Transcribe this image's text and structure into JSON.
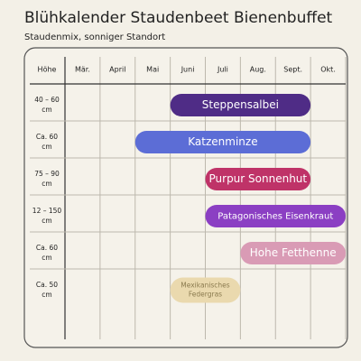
{
  "chart_data": {
    "type": "gantt",
    "title": "Blühkalender Staudenbeet Bienenbuffet",
    "subtitle": "Staudenmix, sonniger Standort",
    "row_header": "Höhe",
    "categories": [
      "Mär.",
      "April",
      "Mai",
      "Juni",
      "Juli",
      "Aug.",
      "Sept.",
      "Okt."
    ],
    "xlim": [
      0,
      8
    ],
    "series": [
      {
        "name": [
          "Steppensalbei"
        ],
        "height": [
          "40 – 60",
          "cm"
        ],
        "color": "#4f2c86",
        "text_color": "#ffffff",
        "start": 3,
        "end": 7
      },
      {
        "name": [
          "Katzenminze"
        ],
        "height": [
          "Ca. 60",
          "cm"
        ],
        "color": "#5c6dd6",
        "text_color": "#ffffff",
        "start": 2,
        "end": 7
      },
      {
        "name": [
          "Purpur Sonnenhut"
        ],
        "height": [
          "75 – 90",
          "cm"
        ],
        "color": "#bf3368",
        "text_color": "#ffffff",
        "start": 4,
        "end": 7
      },
      {
        "name": [
          "Patagonisches Eisenkraut"
        ],
        "height": [
          "12 – 150",
          "cm"
        ],
        "color": "#8b3fc3",
        "text_color": "#ffffff",
        "start": 4,
        "end": 8
      },
      {
        "name": [
          "Hohe Fetthenne"
        ],
        "height": [
          "Ca. 60",
          "cm"
        ],
        "color": "#d99bb5",
        "text_color": "#ffffff",
        "start": 5,
        "end": 8
      },
      {
        "name": [
          "Mexikanisches",
          "Federgras"
        ],
        "height": [
          "Ca. 50",
          "cm"
        ],
        "color": "#ead9ae",
        "text_color": "#8a7a4e",
        "start": 3,
        "end": 5
      }
    ]
  }
}
